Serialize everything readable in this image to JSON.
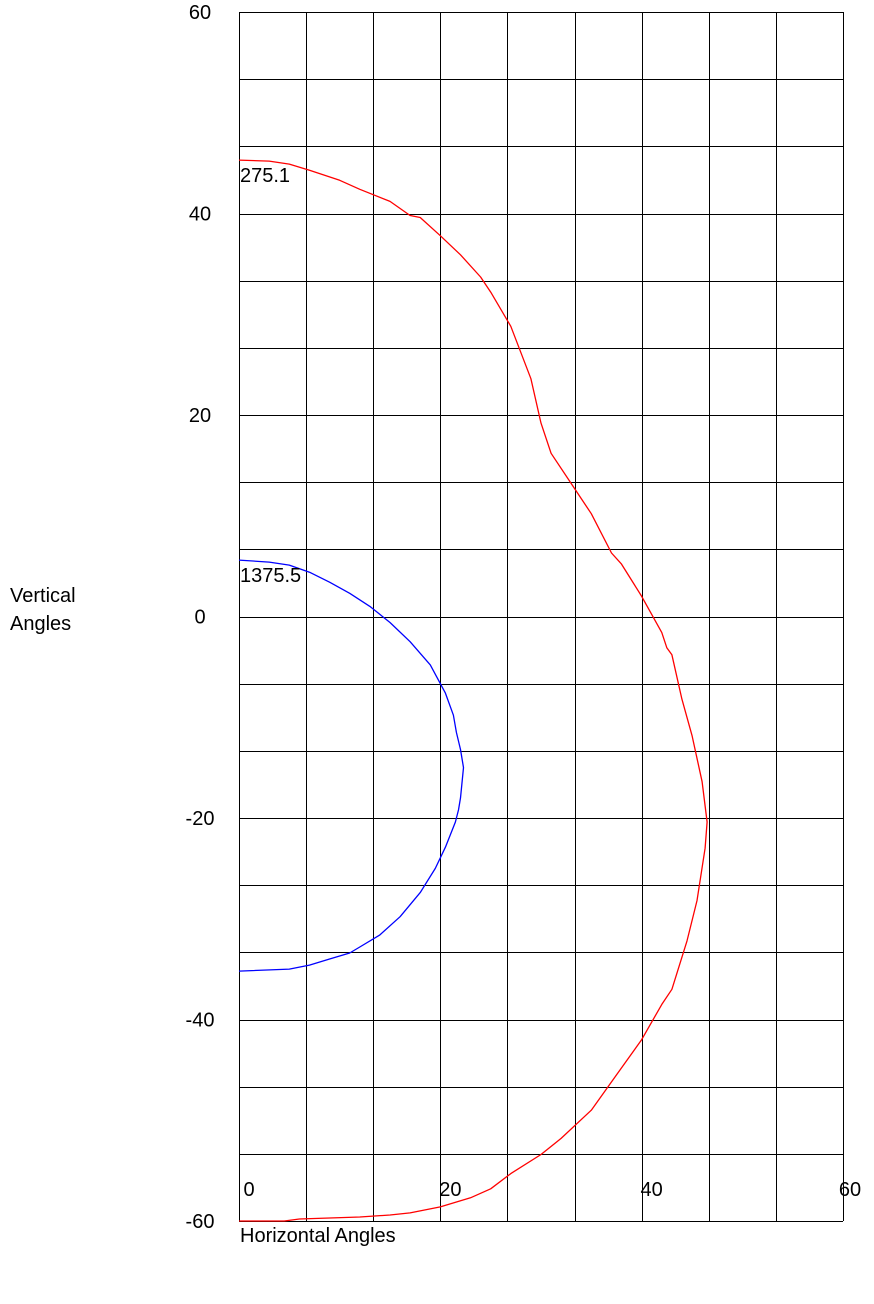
{
  "chart_data": {
    "type": "line",
    "xlabel": "Horizontal Angles",
    "ylabel_line1": "Vertical",
    "ylabel_line2": "Angles",
    "xlim": [
      0,
      60
    ],
    "ylim": [
      -60,
      60
    ],
    "x_ticks": [
      0,
      20,
      40,
      60
    ],
    "y_ticks": [
      60,
      40,
      20,
      0,
      -20,
      -40,
      -60
    ],
    "grid": true,
    "series": [
      {
        "name": "275.1",
        "color": "#ff0000",
        "points": [
          [
            0,
            45.3
          ],
          [
            3,
            45.2
          ],
          [
            5,
            44.9
          ],
          [
            7,
            44.3
          ],
          [
            10,
            43.3
          ],
          [
            12,
            42.4
          ],
          [
            15,
            41.2
          ],
          [
            17,
            39.8
          ],
          [
            18,
            39.6
          ],
          [
            20,
            37.8
          ],
          [
            22,
            35.9
          ],
          [
            24,
            33.7
          ],
          [
            25,
            32.2
          ],
          [
            27,
            28.8
          ],
          [
            29,
            23.6
          ],
          [
            30,
            19.2
          ],
          [
            31,
            16.2
          ],
          [
            33,
            13.2
          ],
          [
            35,
            10.2
          ],
          [
            37,
            6.3
          ],
          [
            38,
            5.2
          ],
          [
            40,
            2.0
          ],
          [
            42,
            -1.6
          ],
          [
            42.5,
            -3.1
          ],
          [
            43,
            -3.8
          ],
          [
            44,
            -8.2
          ],
          [
            45,
            -11.8
          ],
          [
            46,
            -16.4
          ],
          [
            46.5,
            -20.4
          ],
          [
            46.3,
            -23.0
          ],
          [
            45.5,
            -28.2
          ],
          [
            44.5,
            -32.2
          ],
          [
            43,
            -37.0
          ],
          [
            42,
            -38.5
          ],
          [
            40,
            -42.0
          ],
          [
            37.5,
            -45.5
          ],
          [
            35,
            -49.0
          ],
          [
            32,
            -51.8
          ],
          [
            30,
            -53.4
          ],
          [
            27,
            -55.3
          ],
          [
            25,
            -56.8
          ],
          [
            23,
            -57.7
          ],
          [
            20,
            -58.6
          ],
          [
            17,
            -59.2
          ],
          [
            15,
            -59.4
          ],
          [
            12,
            -59.6
          ],
          [
            9,
            -59.7
          ],
          [
            6,
            -59.8
          ],
          [
            4.5,
            -60.0
          ],
          [
            0,
            -60.0
          ]
        ]
      },
      {
        "name": "1375.5",
        "color": "#0000ff",
        "points": [
          [
            0,
            5.6
          ],
          [
            3,
            5.4
          ],
          [
            5,
            5.1
          ],
          [
            7,
            4.4
          ],
          [
            9,
            3.4
          ],
          [
            11,
            2.3
          ],
          [
            13,
            1.0
          ],
          [
            15,
            -0.6
          ],
          [
            17,
            -2.5
          ],
          [
            19,
            -4.8
          ],
          [
            20.5,
            -7.6
          ],
          [
            21.3,
            -9.8
          ],
          [
            21.6,
            -11.5
          ],
          [
            22.0,
            -13.2
          ],
          [
            22.3,
            -15.0
          ],
          [
            22.0,
            -18.0
          ],
          [
            21.8,
            -19.2
          ],
          [
            21.5,
            -20.4
          ],
          [
            20.5,
            -22.9
          ],
          [
            19.5,
            -25.0
          ],
          [
            18,
            -27.4
          ],
          [
            16,
            -29.8
          ],
          [
            14,
            -31.6
          ],
          [
            12,
            -32.8
          ],
          [
            11,
            -33.4
          ],
          [
            9,
            -34.0
          ],
          [
            7,
            -34.6
          ],
          [
            5,
            -35.0
          ],
          [
            0,
            -35.2
          ]
        ],
        "label_at": [
          0,
          3.8
        ]
      }
    ]
  },
  "labels": {
    "series_a_label": "275.1",
    "series_b_label": "1375.5"
  }
}
